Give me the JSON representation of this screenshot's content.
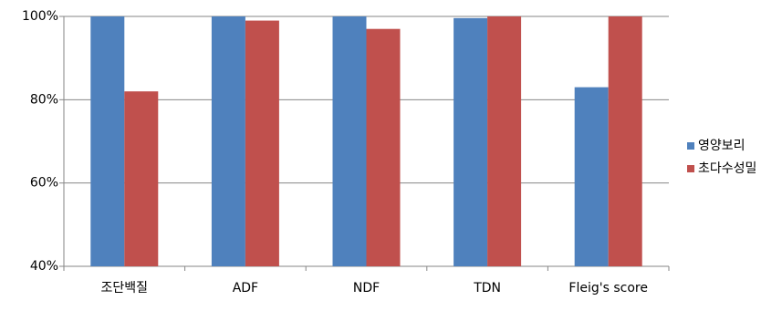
{
  "chart_data": {
    "type": "bar",
    "categories": [
      "조단백질",
      "ADF",
      "NDF",
      "TDN",
      "Fleig's score"
    ],
    "series": [
      {
        "name": "영양보리",
        "color": "#4f81bd",
        "values": [
          100,
          100,
          100,
          99.6,
          83
        ]
      },
      {
        "name": "초다수성밀",
        "color": "#c0504d",
        "values": [
          82,
          99,
          97,
          100,
          100
        ]
      }
    ],
    "ylim": [
      40,
      100
    ],
    "yticks": [
      {
        "value": 40,
        "label": "40%"
      },
      {
        "value": 60,
        "label": "60%"
      },
      {
        "value": 80,
        "label": "80%"
      },
      {
        "value": 100,
        "label": "100%"
      }
    ],
    "grid": true,
    "legend": "right"
  }
}
